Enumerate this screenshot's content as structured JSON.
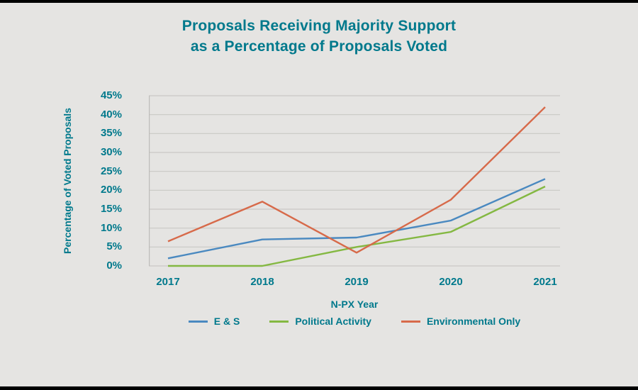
{
  "colors": {
    "accent_teal": "#00798c",
    "background": "#e5e4e2",
    "gridline": "#c9c8c5",
    "axis_line": "#bdbcb9",
    "border_black": "#000000"
  },
  "chart_data": {
    "type": "line",
    "title": "Proposals Receiving Majority Support as a Percentage of Proposals Voted",
    "title_line1": "Proposals Receiving Majority Support",
    "title_line2": "as a Percentage of Proposals Voted",
    "xlabel": "N-PX Year",
    "ylabel": "Percentage of Voted Proposals",
    "x": [
      "2017",
      "2018",
      "2019",
      "2020",
      "2021"
    ],
    "ylim": [
      0,
      45
    ],
    "ytick_step": 5,
    "ytick_suffix": "%",
    "grid": true,
    "legend_position": "bottom",
    "series": [
      {
        "name": "E & S",
        "color": "#4a89c0",
        "values": [
          2,
          7,
          7.5,
          12,
          23
        ]
      },
      {
        "name": "Political Activity",
        "color": "#84b842",
        "values": [
          0,
          0,
          5,
          9,
          21
        ]
      },
      {
        "name": "Environmental Only",
        "color": "#d76a4a",
        "values": [
          6.5,
          17,
          3.5,
          17.5,
          42
        ]
      }
    ]
  }
}
